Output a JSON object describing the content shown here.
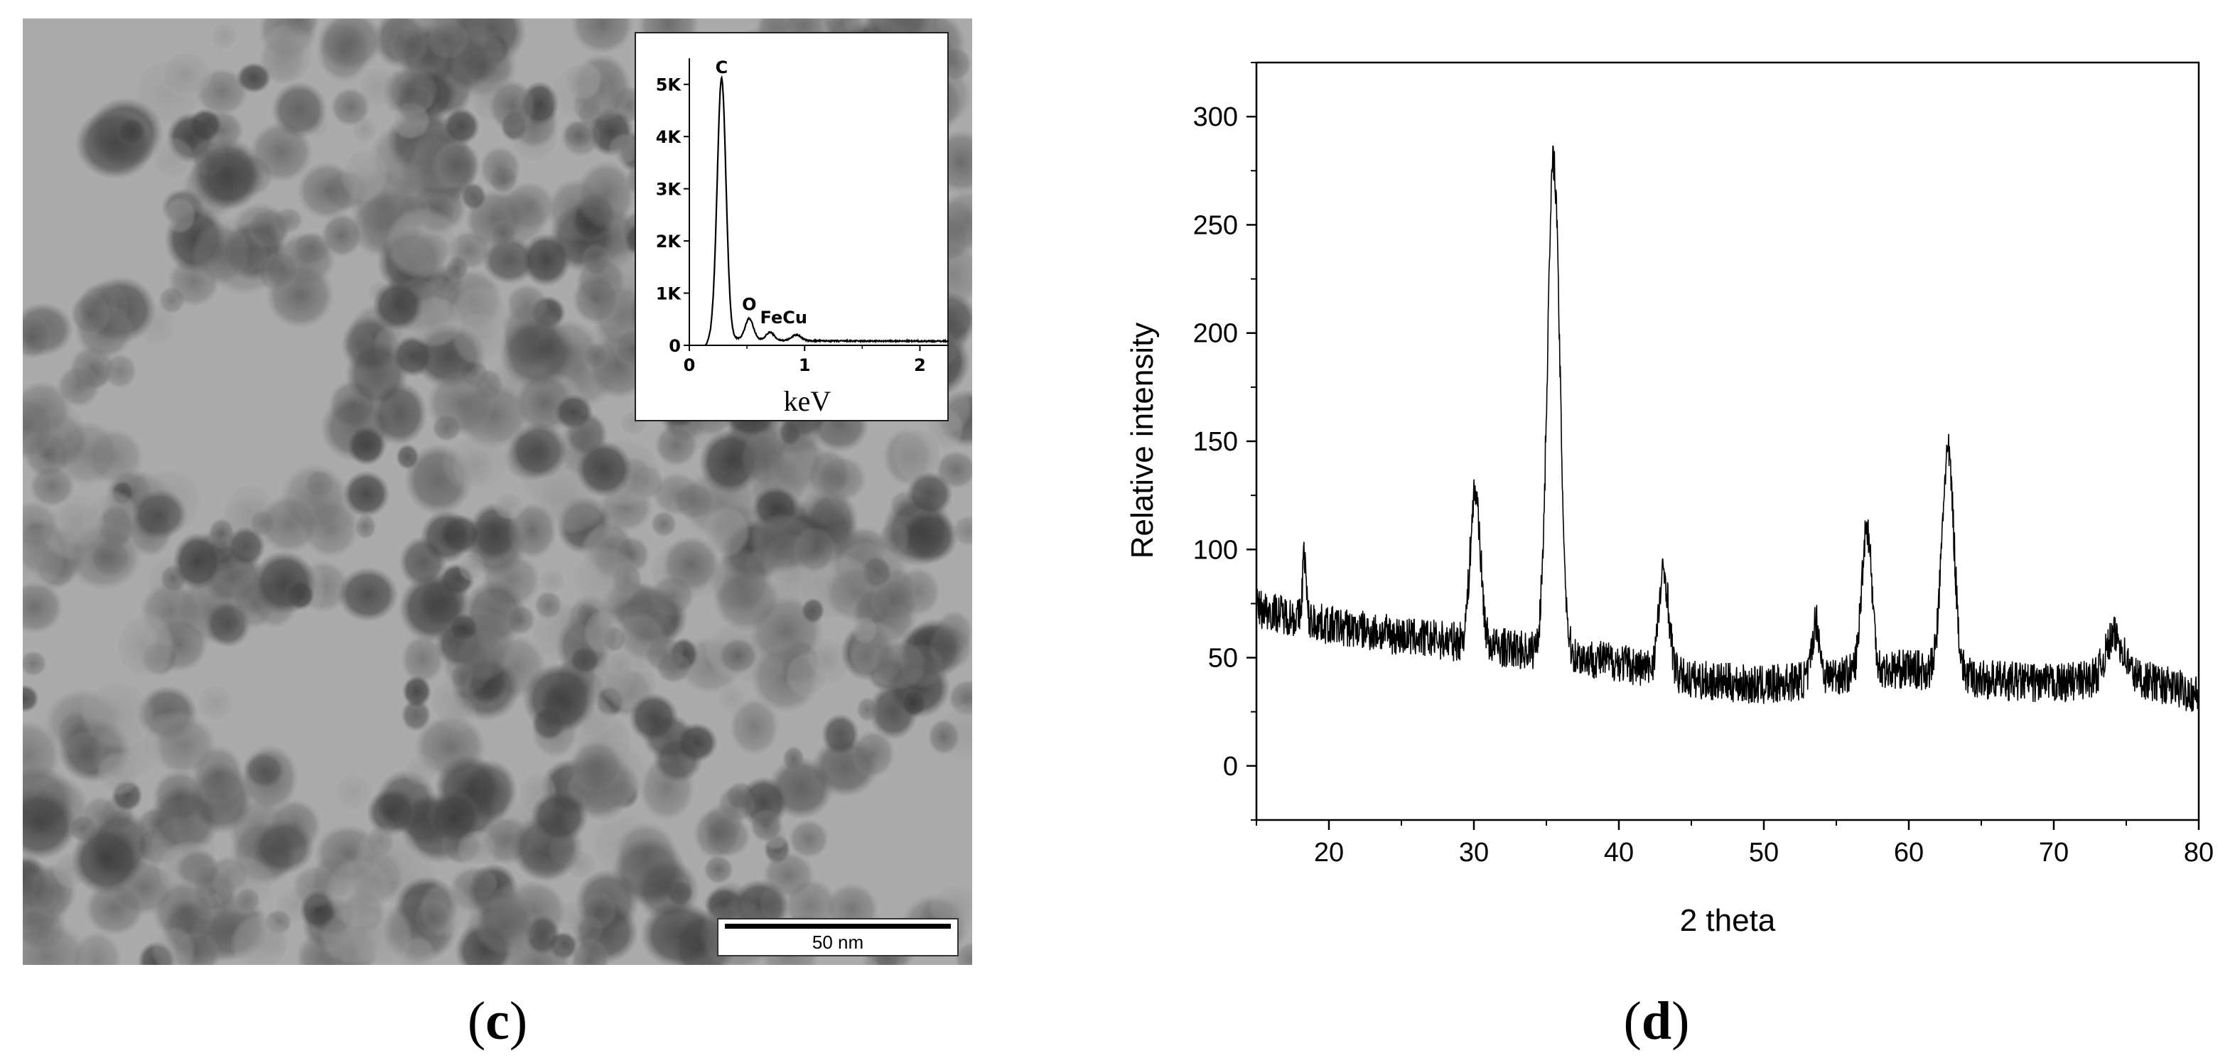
{
  "panels": {
    "c": {
      "label_open": "(",
      "label_letter": "c",
      "label_close": ")",
      "image": {
        "subject": "TEM micrograph of nanoparticle aggregates",
        "scale_bar_label": "50 nm"
      }
    },
    "d": {
      "label_open": "(",
      "label_letter": "d",
      "label_close": ")"
    }
  },
  "chart_data": [
    {
      "id": "eds-inset",
      "type": "line",
      "title": "",
      "xlabel": "keV",
      "ylabel": "",
      "xlim": [
        0,
        2.25
      ],
      "ylim": [
        0,
        5500
      ],
      "xticks": [
        0,
        1,
        2
      ],
      "ytick_values": [
        0,
        1000,
        2000,
        3000,
        4000,
        5000
      ],
      "ytick_labels": [
        "0",
        "1K",
        "2K",
        "3K",
        "4K",
        "5K"
      ],
      "peaks": [
        {
          "label": "C",
          "x": 0.28,
          "y": 5050
        },
        {
          "label": "O",
          "x": 0.52,
          "y": 480
        },
        {
          "label": "Fe",
          "x": 0.7,
          "y": 230
        },
        {
          "label": "Cu",
          "x": 0.93,
          "y": 190
        }
      ],
      "peak_label_text": "FeCu",
      "background_level": 80
    },
    {
      "id": "xrd",
      "type": "line",
      "title": "",
      "xlabel": "2 theta",
      "ylabel": "Relative intensity",
      "xlim": [
        15,
        80
      ],
      "ylim": [
        -25,
        325
      ],
      "xticks": [
        20,
        30,
        40,
        50,
        60,
        70,
        80
      ],
      "yticks": [
        0,
        50,
        100,
        150,
        200,
        250,
        300
      ],
      "baseline": [
        {
          "x": 15,
          "y": 73
        },
        {
          "x": 20,
          "y": 65
        },
        {
          "x": 25,
          "y": 60
        },
        {
          "x": 28,
          "y": 58
        },
        {
          "x": 40,
          "y": 48
        },
        {
          "x": 45,
          "y": 40
        },
        {
          "x": 50,
          "y": 37
        },
        {
          "x": 55,
          "y": 42
        },
        {
          "x": 60,
          "y": 45
        },
        {
          "x": 65,
          "y": 40
        },
        {
          "x": 70,
          "y": 38
        },
        {
          "x": 75,
          "y": 42
        },
        {
          "x": 80,
          "y": 33
        }
      ],
      "peaks": [
        {
          "two_theta": 18.3,
          "intensity": 98
        },
        {
          "two_theta": 30.1,
          "intensity": 127
        },
        {
          "two_theta": 35.5,
          "intensity": 280
        },
        {
          "two_theta": 43.1,
          "intensity": 89
        },
        {
          "two_theta": 53.6,
          "intensity": 67
        },
        {
          "two_theta": 57.1,
          "intensity": 111
        },
        {
          "two_theta": 62.7,
          "intensity": 145
        },
        {
          "two_theta": 74.2,
          "intensity": 60
        }
      ],
      "noise_amplitude": 9
    }
  ]
}
